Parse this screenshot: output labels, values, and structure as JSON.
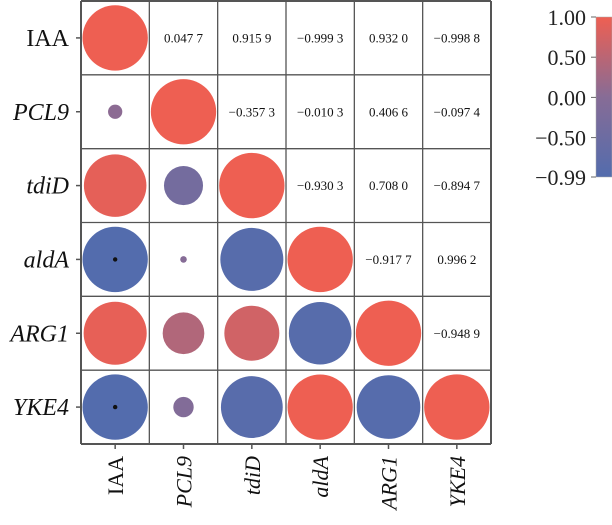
{
  "chart_data": {
    "type": "heatmap",
    "title": "",
    "variables": [
      "IAA",
      "PCL9",
      "tdiD",
      "aldA",
      "ARG1",
      "YKE4"
    ],
    "italic": [
      false,
      true,
      true,
      true,
      true,
      true
    ],
    "matrix": [
      [
        1,
        0.0477,
        0.9159,
        -0.9993,
        0.932,
        -0.9988
      ],
      [
        0.0477,
        1,
        -0.3573,
        -0.0103,
        0.4066,
        -0.0974
      ],
      [
        0.9159,
        -0.3573,
        1,
        -0.9303,
        0.708,
        -0.8947
      ],
      [
        -0.9993,
        -0.0103,
        -0.9303,
        1,
        -0.9177,
        0.9962
      ],
      [
        0.932,
        0.4066,
        0.708,
        -0.9177,
        1,
        -0.9489
      ],
      [
        -0.9988,
        -0.0974,
        -0.8947,
        0.9962,
        -0.9489,
        1
      ]
    ],
    "upper_labels": [
      [
        "",
        "0.047 7",
        "0.915 9",
        "−0.999 3",
        "0.932 0",
        "−0.998 8"
      ],
      [
        "",
        "",
        "−0.357 3",
        "−0.010 3",
        "0.406 6",
        "−0.097 4"
      ],
      [
        "",
        "",
        "",
        "−0.930 3",
        "0.708 0",
        "−0.894 7"
      ],
      [
        "",
        "",
        "",
        "",
        "−0.917 7",
        "0.996 2"
      ],
      [
        "",
        "",
        "",
        "",
        "",
        "−0.948 9"
      ],
      [
        "",
        "",
        "",
        "",
        "",
        ""
      ]
    ],
    "significance_marks": [
      [
        3,
        0
      ],
      [
        5,
        0
      ]
    ],
    "colorbar": {
      "ticks": [
        "1.00",
        "0.50",
        "0.00",
        "−0.50",
        "−0.99"
      ],
      "tick_values": [
        1.0,
        0.5,
        0.0,
        -0.5,
        -0.99
      ],
      "range": [
        -0.99,
        1.0
      ]
    },
    "colors": {
      "positive": "#EE5F52",
      "neutral": "#876C96",
      "negative": "#536CAD",
      "grid": "#555555"
    }
  }
}
